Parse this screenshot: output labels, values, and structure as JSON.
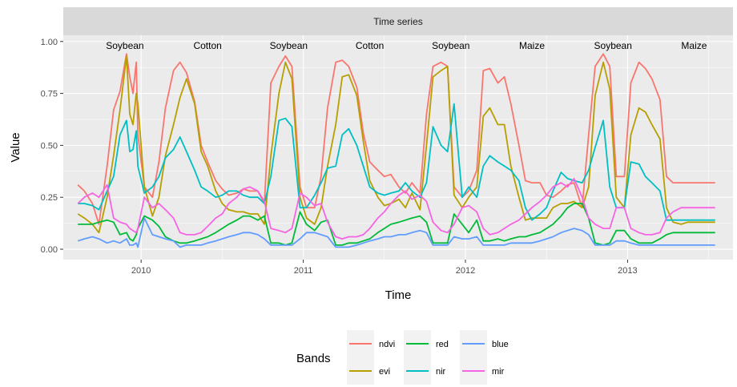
{
  "chart_data": {
    "type": "line",
    "facet_label": "Time series",
    "xlabel": "Time",
    "ylabel": "Value",
    "x_range": [
      2009.52,
      2013.65
    ],
    "ylim": [
      -0.05,
      1.03
    ],
    "x_ticks": [
      2010,
      2011,
      2012,
      2013
    ],
    "x_tick_labels": [
      "2010",
      "2011",
      "2012",
      "2013"
    ],
    "y_ticks": [
      0,
      0.25,
      0.5,
      0.75,
      1.0
    ],
    "y_tick_labels": [
      "0.00",
      "0.25",
      "0.50",
      "0.75",
      "1.00"
    ],
    "grid": true,
    "legend": {
      "title": "Bands",
      "position": "bottom",
      "entries": [
        {
          "label": "ndvi",
          "color": "#F8766D"
        },
        {
          "label": "evi",
          "color": "#B79F00"
        },
        {
          "label": "red",
          "color": "#00BA38"
        },
        {
          "label": "nir",
          "color": "#00BFC4"
        },
        {
          "label": "blue",
          "color": "#619CFF"
        },
        {
          "label": "mir",
          "color": "#F564E3"
        }
      ]
    },
    "annotations": [
      {
        "label": "Soybean",
        "x": 2009.9
      },
      {
        "label": "Cotton",
        "x": 2010.41
      },
      {
        "label": "Soybean",
        "x": 2010.91
      },
      {
        "label": "Cotton",
        "x": 2011.41
      },
      {
        "label": "Soybean",
        "x": 2011.91
      },
      {
        "label": "Maize",
        "x": 2012.41
      },
      {
        "label": "Soybean",
        "x": 2012.91
      },
      {
        "label": "Maize",
        "x": 2013.41
      }
    ],
    "x": [
      2009.61,
      2009.65,
      2009.7,
      2009.74,
      2009.79,
      2009.83,
      2009.87,
      2009.91,
      2009.93,
      2009.95,
      2009.97,
      2009.98,
      2010.02,
      2010.07,
      2010.11,
      2010.15,
      2010.2,
      2010.24,
      2010.28,
      2010.33,
      2010.37,
      2010.41,
      2010.46,
      2010.5,
      2010.54,
      2010.59,
      2010.63,
      2010.67,
      2010.72,
      2010.76,
      2010.8,
      2010.85,
      2010.89,
      2010.93,
      2010.98,
      2011.02,
      2011.07,
      2011.11,
      2011.15,
      2011.2,
      2011.24,
      2011.28,
      2011.33,
      2011.37,
      2011.41,
      2011.46,
      2011.5,
      2011.54,
      2011.59,
      2011.63,
      2011.67,
      2011.72,
      2011.76,
      2011.8,
      2011.85,
      2011.89,
      2011.93,
      2011.98,
      2012.02,
      2012.07,
      2012.11,
      2012.15,
      2012.2,
      2012.24,
      2012.28,
      2012.33,
      2012.37,
      2012.41,
      2012.46,
      2012.5,
      2012.54,
      2012.59,
      2012.63,
      2012.67,
      2012.72,
      2012.76,
      2012.8,
      2012.85,
      2012.89,
      2012.93,
      2012.98,
      2013.02,
      2013.07,
      2013.11,
      2013.15,
      2013.2,
      2013.24,
      2013.28,
      2013.33,
      2013.37,
      2013.41,
      2013.46,
      2013.5,
      2013.54
    ],
    "series": [
      {
        "name": "ndvi",
        "color": "#F8766D",
        "values": [
          0.31,
          0.28,
          0.22,
          0.12,
          0.4,
          0.67,
          0.76,
          0.94,
          0.83,
          0.75,
          0.9,
          0.55,
          0.3,
          0.25,
          0.42,
          0.68,
          0.86,
          0.9,
          0.85,
          0.71,
          0.5,
          0.42,
          0.33,
          0.29,
          0.26,
          0.27,
          0.29,
          0.28,
          0.28,
          0.22,
          0.8,
          0.88,
          0.93,
          0.88,
          0.3,
          0.2,
          0.2,
          0.35,
          0.68,
          0.9,
          0.91,
          0.88,
          0.78,
          0.56,
          0.42,
          0.38,
          0.35,
          0.36,
          0.3,
          0.27,
          0.32,
          0.27,
          0.65,
          0.88,
          0.9,
          0.88,
          0.3,
          0.25,
          0.28,
          0.38,
          0.86,
          0.87,
          0.8,
          0.83,
          0.7,
          0.5,
          0.33,
          0.32,
          0.32,
          0.26,
          0.25,
          0.28,
          0.31,
          0.32,
          0.2,
          0.55,
          0.88,
          0.94,
          0.88,
          0.35,
          0.35,
          0.8,
          0.9,
          0.87,
          0.82,
          0.72,
          0.35,
          0.32,
          0.32,
          0.32,
          0.32,
          0.32,
          0.32,
          0.32
        ]
      },
      {
        "name": "evi",
        "color": "#B79F00",
        "values": [
          0.17,
          0.15,
          0.12,
          0.08,
          0.25,
          0.45,
          0.67,
          0.93,
          0.65,
          0.6,
          0.75,
          0.7,
          0.3,
          0.16,
          0.25,
          0.45,
          0.6,
          0.73,
          0.82,
          0.7,
          0.47,
          0.4,
          0.28,
          0.22,
          0.19,
          0.18,
          0.18,
          0.17,
          0.17,
          0.12,
          0.45,
          0.75,
          0.9,
          0.82,
          0.25,
          0.15,
          0.12,
          0.2,
          0.4,
          0.6,
          0.83,
          0.84,
          0.74,
          0.52,
          0.33,
          0.25,
          0.21,
          0.22,
          0.24,
          0.2,
          0.27,
          0.19,
          0.5,
          0.83,
          0.86,
          0.88,
          0.26,
          0.2,
          0.25,
          0.3,
          0.64,
          0.68,
          0.6,
          0.6,
          0.4,
          0.25,
          0.14,
          0.15,
          0.15,
          0.15,
          0.2,
          0.22,
          0.22,
          0.23,
          0.2,
          0.3,
          0.74,
          0.9,
          0.77,
          0.25,
          0.2,
          0.55,
          0.68,
          0.66,
          0.6,
          0.53,
          0.2,
          0.13,
          0.12,
          0.13,
          0.13,
          0.13,
          0.13,
          0.13
        ]
      },
      {
        "name": "red",
        "color": "#00BA38",
        "values": [
          0.12,
          0.12,
          0.12,
          0.13,
          0.14,
          0.13,
          0.07,
          0.08,
          0.05,
          0.04,
          0.07,
          0.1,
          0.16,
          0.14,
          0.11,
          0.06,
          0.04,
          0.03,
          0.03,
          0.04,
          0.05,
          0.06,
          0.08,
          0.1,
          0.12,
          0.14,
          0.16,
          0.16,
          0.14,
          0.16,
          0.03,
          0.03,
          0.02,
          0.03,
          0.18,
          0.12,
          0.09,
          0.13,
          0.14,
          0.02,
          0.02,
          0.03,
          0.03,
          0.04,
          0.05,
          0.08,
          0.1,
          0.12,
          0.13,
          0.14,
          0.15,
          0.16,
          0.13,
          0.03,
          0.03,
          0.03,
          0.17,
          0.12,
          0.08,
          0.14,
          0.04,
          0.04,
          0.05,
          0.04,
          0.05,
          0.06,
          0.06,
          0.07,
          0.08,
          0.1,
          0.12,
          0.16,
          0.2,
          0.22,
          0.22,
          0.15,
          0.03,
          0.02,
          0.03,
          0.09,
          0.09,
          0.05,
          0.03,
          0.03,
          0.03,
          0.05,
          0.07,
          0.08,
          0.08,
          0.08,
          0.08,
          0.08,
          0.08,
          0.08
        ]
      },
      {
        "name": "nir",
        "color": "#00BFC4",
        "values": [
          0.22,
          0.22,
          0.21,
          0.19,
          0.28,
          0.35,
          0.55,
          0.62,
          0.47,
          0.48,
          0.57,
          0.4,
          0.27,
          0.3,
          0.35,
          0.44,
          0.48,
          0.54,
          0.47,
          0.38,
          0.3,
          0.28,
          0.25,
          0.26,
          0.28,
          0.28,
          0.26,
          0.25,
          0.25,
          0.22,
          0.35,
          0.62,
          0.63,
          0.59,
          0.2,
          0.2,
          0.26,
          0.32,
          0.39,
          0.4,
          0.55,
          0.58,
          0.5,
          0.4,
          0.3,
          0.27,
          0.26,
          0.27,
          0.28,
          0.32,
          0.28,
          0.25,
          0.32,
          0.59,
          0.5,
          0.47,
          0.7,
          0.25,
          0.3,
          0.25,
          0.4,
          0.45,
          0.42,
          0.4,
          0.38,
          0.33,
          0.2,
          0.14,
          0.17,
          0.2,
          0.28,
          0.37,
          0.34,
          0.33,
          0.32,
          0.38,
          0.49,
          0.62,
          0.3,
          0.2,
          0.2,
          0.42,
          0.41,
          0.35,
          0.32,
          0.28,
          0.14,
          0.14,
          0.14,
          0.14,
          0.14,
          0.14,
          0.14,
          0.14
        ]
      },
      {
        "name": "blue",
        "color": "#619CFF",
        "values": [
          0.04,
          0.05,
          0.06,
          0.05,
          0.03,
          0.04,
          0.03,
          0.05,
          0.02,
          0.02,
          0.03,
          0.01,
          0.15,
          0.07,
          0.06,
          0.05,
          0.04,
          0.01,
          0.02,
          0.02,
          0.02,
          0.03,
          0.04,
          0.05,
          0.06,
          0.07,
          0.08,
          0.08,
          0.07,
          0.05,
          0.02,
          0.02,
          0.02,
          0.02,
          0.05,
          0.08,
          0.08,
          0.07,
          0.06,
          0.01,
          0.01,
          0.01,
          0.02,
          0.03,
          0.04,
          0.05,
          0.06,
          0.06,
          0.07,
          0.07,
          0.08,
          0.09,
          0.08,
          0.02,
          0.02,
          0.02,
          0.06,
          0.05,
          0.05,
          0.06,
          0.02,
          0.02,
          0.02,
          0.02,
          0.03,
          0.03,
          0.03,
          0.03,
          0.04,
          0.05,
          0.06,
          0.08,
          0.09,
          0.1,
          0.09,
          0.07,
          0.02,
          0.02,
          0.02,
          0.04,
          0.04,
          0.03,
          0.02,
          0.02,
          0.02,
          0.02,
          0.02,
          0.02,
          0.02,
          0.02,
          0.02,
          0.02,
          0.02,
          0.02
        ]
      },
      {
        "name": "mir",
        "color": "#F564E3",
        "values": [
          0.22,
          0.25,
          0.27,
          0.25,
          0.31,
          0.15,
          0.13,
          0.12,
          0.1,
          0.09,
          0.08,
          0.1,
          0.25,
          0.2,
          0.22,
          0.19,
          0.15,
          0.08,
          0.07,
          0.07,
          0.08,
          0.11,
          0.15,
          0.17,
          0.22,
          0.25,
          0.29,
          0.3,
          0.28,
          0.23,
          0.1,
          0.09,
          0.08,
          0.1,
          0.27,
          0.25,
          0.21,
          0.22,
          0.13,
          0.06,
          0.05,
          0.06,
          0.06,
          0.07,
          0.1,
          0.15,
          0.18,
          0.22,
          0.26,
          0.28,
          0.24,
          0.26,
          0.23,
          0.13,
          0.09,
          0.08,
          0.12,
          0.2,
          0.21,
          0.18,
          0.1,
          0.07,
          0.08,
          0.1,
          0.12,
          0.14,
          0.17,
          0.2,
          0.23,
          0.26,
          0.3,
          0.32,
          0.3,
          0.34,
          0.25,
          0.15,
          0.12,
          0.1,
          0.1,
          0.2,
          0.2,
          0.1,
          0.08,
          0.07,
          0.07,
          0.08,
          0.15,
          0.18,
          0.2,
          0.2,
          0.2,
          0.2,
          0.2,
          0.2
        ]
      }
    ]
  }
}
